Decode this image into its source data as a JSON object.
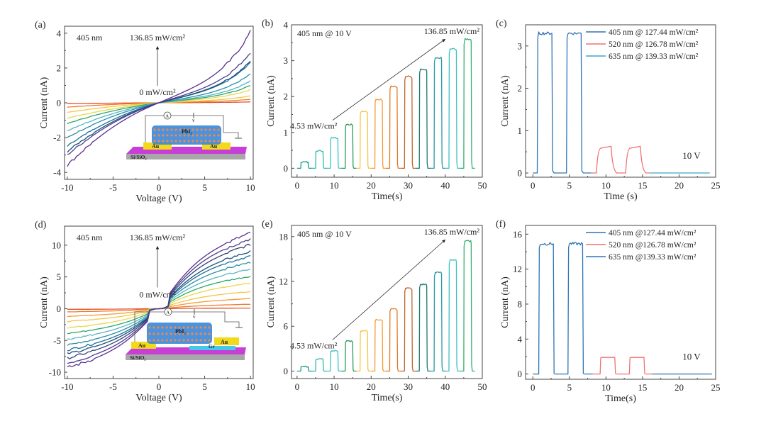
{
  "figure": {
    "panel_labels": [
      "(a)",
      "(b)",
      "(c)",
      "(d)",
      "(e)",
      "(f)"
    ]
  },
  "colors": {
    "power_series": [
      "#e0502a",
      "#f07a2a",
      "#f59a35",
      "#f5c542",
      "#e8d84a",
      "#2aa86a",
      "#80c8d8",
      "#5ab4c4",
      "#2a8fa6",
      "#1f6f96",
      "#1a4e7e",
      "#34407a",
      "#4a3f8c",
      "#5a2e8e"
    ],
    "pulse_colors": [
      "#1a9a8a",
      "#2bb7b0",
      "#3ec2c0",
      "#2a9a5a",
      "#f5c542",
      "#f59a35",
      "#e07a28",
      "#c0662a",
      "#1a7a70",
      "#2a9aa0",
      "#3cc0c0",
      "#34b070"
    ],
    "wl_405": "#2e74b5",
    "wl_520": "#f07070",
    "wl_635": "#3aa8c8"
  },
  "chart_data": [
    {
      "id": "a",
      "type": "line",
      "title": "",
      "xlabel": "Voltage (V)",
      "ylabel": "Current (nA)",
      "xlim": [
        -10.3,
        10.3
      ],
      "ylim": [
        -4.4,
        4.4
      ],
      "xticks": [
        -10,
        -5,
        0,
        5,
        10
      ],
      "yticks": [
        -4,
        -2,
        0,
        2,
        4
      ],
      "annotations": {
        "wavelength": "405 nm",
        "top": "136.85 mW/cm²",
        "bottom": "0 mW/cm²"
      },
      "inset": {
        "labels": [
          "PbI₂",
          "Au",
          "Au",
          "Si/SiO₂",
          "A",
          "V_ds"
        ]
      },
      "series_endpoints": {
        "note": "current at -10 V and +10 V for increasing power (0 → 136.85 mW/cm²)",
        "i_at_minus10": [
          -0.05,
          -0.25,
          -0.55,
          -0.9,
          -1.2,
          -1.6,
          -2.0,
          -2.5,
          -2.8,
          -3.0,
          -3.6
        ],
        "i_at_plus10": [
          0.05,
          0.2,
          0.4,
          0.75,
          1.0,
          1.25,
          1.65,
          2.3,
          2.4,
          2.9,
          4.1
        ]
      }
    },
    {
      "id": "b",
      "type": "line",
      "xlabel": "Time(s)",
      "ylabel": "Current (nA)",
      "xlim": [
        -1.5,
        50
      ],
      "ylim": [
        -0.25,
        4
      ],
      "xticks": [
        0,
        10,
        20,
        30,
        40,
        50
      ],
      "yticks": [
        0,
        1,
        2,
        3,
        4
      ],
      "annotations": {
        "condition": "405 nm @ 10 V",
        "start": "4.53 mW/cm²",
        "end": "136.85 mW/cm²"
      },
      "pulses": {
        "period_s": 4,
        "on_duration_s": 2,
        "first_on_s": 1,
        "peak_currents": [
          0.17,
          0.48,
          0.85,
          1.22,
          1.58,
          1.92,
          2.29,
          2.56,
          2.76,
          3.08,
          3.33,
          3.6
        ]
      }
    },
    {
      "id": "c",
      "type": "line",
      "xlabel": "Time (s)",
      "ylabel": "Current (nA)",
      "xlim": [
        -1,
        25
      ],
      "ylim": [
        -0.1,
        3.5
      ],
      "xticks": [
        0,
        5,
        10,
        15,
        20,
        25
      ],
      "yticks": [
        0,
        1,
        2,
        3
      ],
      "annotations": {
        "bias": "10 V"
      },
      "legend": "top-right",
      "series": [
        {
          "name": "405 nm @ 127.44 mW/cm²",
          "color_key": "wl_405",
          "t_range": [
            0,
            8
          ],
          "pulses": [
            [
              0.6,
              2.6
            ],
            [
              4.6,
              6.6
            ]
          ],
          "peak": 3.3
        },
        {
          "name": "520 nm @ 126.78 mW/cm²",
          "color_key": "wl_520",
          "t_range": [
            8,
            16
          ],
          "pulses": [
            [
              8.7,
              10.7
            ],
            [
              12.7,
              14.7
            ]
          ],
          "peak": 0.63
        },
        {
          "name": "635 nm @ 139.33 mW/cm²",
          "color_key": "wl_635",
          "t_range": [
            16,
            24.2
          ],
          "pulses": [],
          "peak": 0
        }
      ]
    },
    {
      "id": "d",
      "type": "line",
      "xlabel": "Voltage (V)",
      "ylabel": "Current (nA)",
      "xlim": [
        -10.3,
        10.3
      ],
      "ylim": [
        -11,
        13
      ],
      "xticks": [
        -10,
        -5,
        0,
        5,
        10
      ],
      "yticks": [
        -10,
        -5,
        0,
        5,
        10
      ],
      "annotations": {
        "wavelength": "405 nm",
        "top": "136.85 mW/cm²",
        "bottom": "0 mW/cm²"
      },
      "inset": {
        "labels": [
          "PbI₂",
          "Au",
          "Au",
          "Gr",
          "Si/SiO₂",
          "A",
          "V_ds"
        ]
      },
      "series_endpoints": {
        "note": "current at -10 V and +10 V for increasing power (0 → 136.85 mW/cm²)",
        "i_at_minus10": [
          -0.1,
          -0.5,
          -1.2,
          -2.0,
          -3.0,
          -3.9,
          -4.8,
          -5.7,
          -6.5,
          -7.1,
          -7.8,
          -8.6,
          -9.3
        ],
        "i_at_plus10": [
          0.1,
          0.7,
          1.6,
          2.7,
          4.0,
          5.1,
          6.2,
          7.3,
          8.3,
          9.0,
          10.1,
          11.0,
          11.9
        ]
      }
    },
    {
      "id": "e",
      "type": "line",
      "xlabel": "Time(s)",
      "ylabel": "Current (nA)",
      "xlim": [
        -1.5,
        50
      ],
      "ylim": [
        -1,
        19.5
      ],
      "xticks": [
        0,
        10,
        20,
        30,
        40,
        50
      ],
      "yticks": [
        0,
        6,
        12,
        18
      ],
      "annotations": {
        "condition": "405 nm @ 10 V",
        "start": "4.53 mW/cm²",
        "end": "136.85 mW/cm²"
      },
      "pulses": {
        "period_s": 4,
        "on_duration_s": 2,
        "first_on_s": 1,
        "peak_currents": [
          0.6,
          1.6,
          2.7,
          4.0,
          5.4,
          6.9,
          8.3,
          11.1,
          11.6,
          13.2,
          14.9,
          17.4
        ]
      }
    },
    {
      "id": "f",
      "type": "line",
      "xlabel": "Time(s)",
      "ylabel": "Current (nA)",
      "xlim": [
        -1,
        25
      ],
      "ylim": [
        -0.6,
        17
      ],
      "xticks": [
        0,
        5,
        10,
        15,
        20,
        25
      ],
      "yticks": [
        0,
        4,
        8,
        12,
        16
      ],
      "annotations": {
        "bias": "10 V"
      },
      "legend": "top-right",
      "series": [
        {
          "name": "405 nm @127.44 mW/cm²",
          "color_key": "wl_405",
          "t_range": [
            0,
            8.2
          ],
          "pulses": [
            [
              0.8,
              2.8
            ],
            [
              4.8,
              6.8
            ]
          ],
          "peak": 14.9
        },
        {
          "name": "520 nm @126.78 mW/cm²",
          "color_key": "wl_520",
          "t_range": [
            8.2,
            16.3
          ],
          "pulses": [
            [
              9.2,
              11.2
            ],
            [
              13.2,
              15.2
            ]
          ],
          "peak": 1.9
        },
        {
          "name": "635 nm @139.33 mW/cm²",
          "color_key": "wl_405",
          "t_range": [
            16.3,
            24.5
          ],
          "pulses": [],
          "peak": 0
        }
      ]
    }
  ]
}
